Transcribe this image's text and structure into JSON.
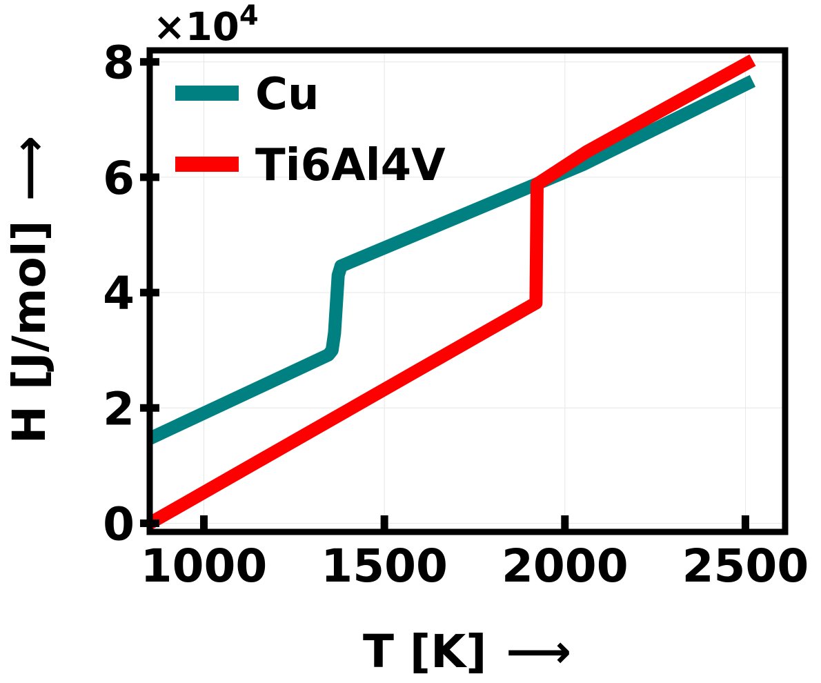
{
  "chart_data": {
    "type": "line",
    "xlabel": "T [K]",
    "ylabel": "H [J/mol]",
    "x_arrow": "⟶",
    "y_arrow": "⟶",
    "y_multiplier": {
      "base": "×10",
      "exponent": "4"
    },
    "xlim": [
      850,
      2610
    ],
    "ylim": [
      -1500,
      82000
    ],
    "x_ticks": [
      {
        "value": 1000,
        "label": "1000"
      },
      {
        "value": 1500,
        "label": "1500"
      },
      {
        "value": 2000,
        "label": "2000"
      },
      {
        "value": 2500,
        "label": "2500"
      }
    ],
    "y_ticks": [
      {
        "value": 0,
        "label": "0"
      },
      {
        "value": 20000,
        "label": "2"
      },
      {
        "value": 40000,
        "label": "4"
      },
      {
        "value": 60000,
        "label": "6"
      },
      {
        "value": 80000,
        "label": "8"
      }
    ],
    "grid": true,
    "legend_position": "top-left",
    "series": [
      {
        "name": "Cu",
        "color": "#008080",
        "points": [
          [
            850,
            14700
          ],
          [
            1345,
            29200
          ],
          [
            1355,
            30000
          ],
          [
            1362,
            33000
          ],
          [
            1368,
            39000
          ],
          [
            1372,
            43000
          ],
          [
            1380,
            44600
          ],
          [
            2050,
            62200
          ],
          [
            2520,
            76700
          ]
        ]
      },
      {
        "name": "Ti6Al4V",
        "color": "#ff0000",
        "points": [
          [
            850,
            0
          ],
          [
            1920,
            38200
          ],
          [
            1923,
            58800
          ],
          [
            2060,
            64400
          ],
          [
            2520,
            80300
          ]
        ]
      }
    ]
  }
}
